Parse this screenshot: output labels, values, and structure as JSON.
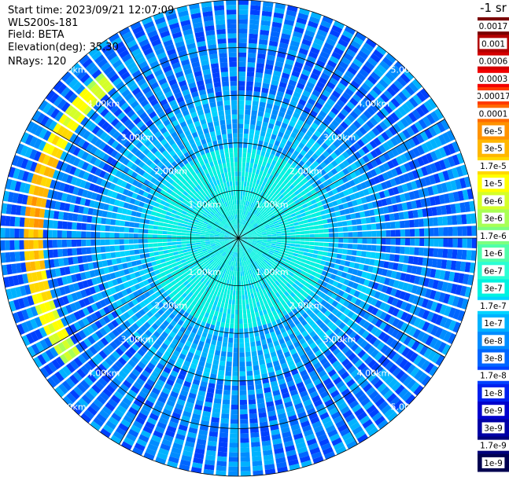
{
  "info": {
    "start_time": "Start time: 2023/09/21 12:07:09",
    "instrument": "WLS200s-181",
    "field": "Field: BETA",
    "elevation": "Elevation(deg): 35.30",
    "nrays": "NRays: 120"
  },
  "colorbar": {
    "unit": "-1 sr",
    "labels": [
      "0.0017",
      "0.001",
      "0.0006",
      "0.0003",
      "0.00017",
      "0.0001",
      "6e-5",
      "3e-5",
      "1.7e-5",
      "1e-5",
      "6e-6",
      "3e-6",
      "1.7e-6",
      "1e-6",
      "6e-7",
      "3e-7",
      "1.7e-7",
      "1e-7",
      "6e-8",
      "3e-8",
      "1.7e-8",
      "1e-8",
      "6e-9",
      "3e-9",
      "1.7e-9",
      "1e-9"
    ],
    "colors": [
      "#7a0000",
      "#b20000",
      "#d40000",
      "#f20000",
      "#ff3a00",
      "#ff6a00",
      "#ff9200",
      "#ffb600",
      "#ffd800",
      "#ffff00",
      "#d4ff2a",
      "#a8ff55",
      "#7cff80",
      "#50ffaa",
      "#2affd4",
      "#00f2e0",
      "#00d4ff",
      "#00b2ff",
      "#008cff",
      "#0066ff",
      "#0040ff",
      "#0020ee",
      "#0000cc",
      "#0000a6",
      "#00007a",
      "#000050"
    ]
  },
  "chart_data": {
    "type": "heatmap",
    "subtype": "ppi-polar",
    "nrays": 120,
    "range_rings_km": [
      1,
      2,
      3,
      4,
      5
    ],
    "ring_labels": [
      "1.00km",
      "2.00km",
      "3.00km",
      "4.00km",
      "5.00km"
    ],
    "spoke_step_deg": 30,
    "max_range_km": 5.0,
    "ring_label_bearings_deg": [
      -45,
      45,
      135,
      225
    ],
    "gates_per_ray": 50,
    "field_levels": {
      "near_field_index": 15,
      "mid_field_index": 18,
      "far_field_range": [
        17,
        20
      ],
      "feature_arc": {
        "range_km": [
          4.1,
          4.45
        ],
        "azimuth_deg": [
          235,
          320
        ],
        "peak_index": 6
      }
    }
  }
}
